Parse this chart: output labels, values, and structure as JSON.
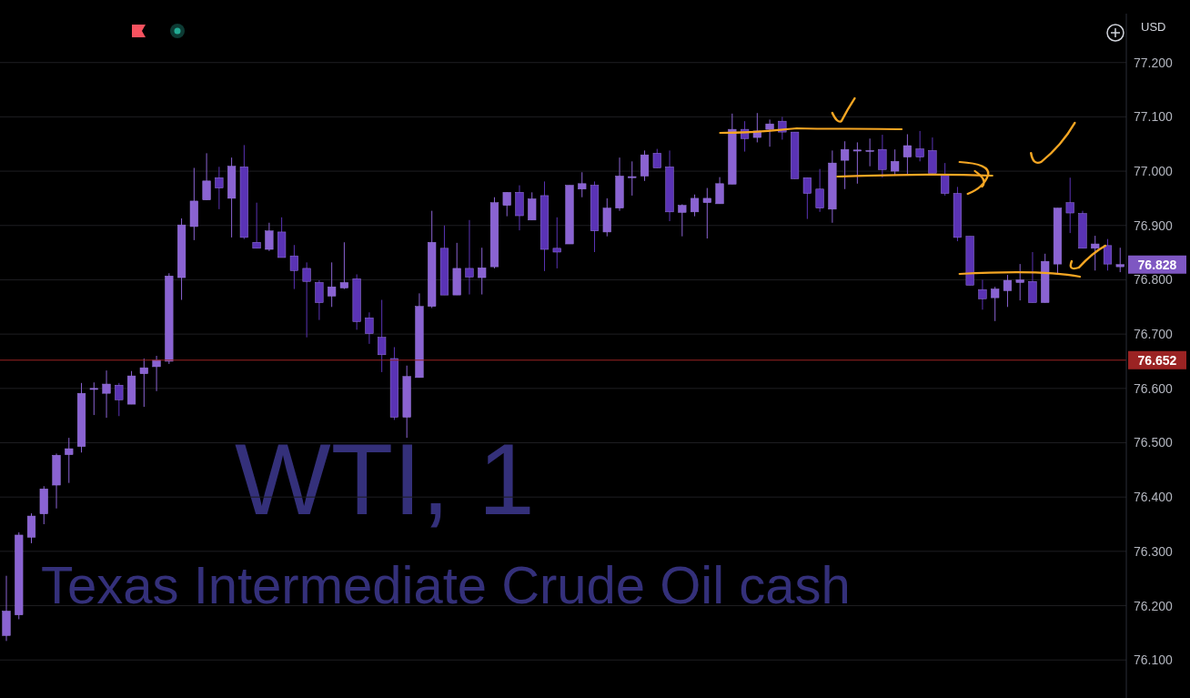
{
  "chart_data": {
    "type": "candlestick",
    "title": "WTI, 1",
    "subtitle": "Texas Intermediate Crude Oil cash",
    "annotations": [
      "USD",
      "76.828"
    ],
    "categories": [
      null,
      null,
      null,
      null,
      null,
      null,
      null,
      null,
      null,
      null,
      null,
      null,
      null,
      null,
      null,
      null,
      null,
      null,
      null,
      null,
      null,
      null,
      null,
      null,
      null,
      null,
      null,
      null,
      null,
      null,
      null,
      null,
      null,
      null,
      null,
      null,
      null,
      null,
      null,
      null,
      null,
      null,
      null,
      null,
      null,
      null,
      null,
      null,
      null,
      null,
      null,
      null,
      null,
      null,
      null,
      null,
      null,
      null,
      null,
      null,
      null,
      null,
      null,
      null,
      null,
      null,
      null,
      null,
      null,
      null,
      null,
      null,
      null,
      null,
      null,
      null,
      null,
      null,
      null,
      null,
      null,
      null,
      null,
      null,
      null,
      null,
      null,
      null,
      null,
      null
    ],
    "ohlc": [
      [
        76.145,
        76.255,
        76.135,
        76.19
      ],
      [
        76.183,
        76.335,
        76.175,
        76.33
      ],
      [
        76.326,
        76.37,
        76.315,
        76.365
      ],
      [
        76.369,
        76.42,
        76.35,
        76.415
      ],
      [
        76.422,
        76.48,
        76.379,
        76.477
      ],
      [
        76.478,
        76.509,
        76.426,
        76.489
      ],
      [
        76.493,
        76.61,
        76.482,
        76.591
      ],
      [
        76.598,
        76.611,
        76.551,
        76.6
      ],
      [
        76.591,
        76.633,
        76.546,
        76.608
      ],
      [
        76.606,
        76.61,
        76.549,
        76.579
      ],
      [
        76.571,
        76.632,
        76.571,
        76.623
      ],
      [
        76.627,
        76.655,
        76.566,
        76.638
      ],
      [
        76.64,
        76.66,
        76.595,
        76.652
      ],
      [
        76.65,
        76.812,
        76.645,
        76.807
      ],
      [
        76.804,
        76.913,
        76.763,
        76.901
      ],
      [
        76.898,
        77.006,
        76.873,
        76.945
      ],
      [
        76.947,
        77.033,
        76.947,
        76.982
      ],
      [
        76.988,
        77.008,
        76.93,
        76.969
      ],
      [
        76.95,
        77.025,
        76.878,
        77.009
      ],
      [
        77.008,
        77.048,
        76.875,
        76.878
      ],
      [
        76.869,
        76.942,
        76.858,
        76.858
      ],
      [
        76.856,
        76.905,
        76.853,
        76.89
      ],
      [
        76.888,
        76.915,
        76.841,
        76.841
      ],
      [
        76.844,
        76.864,
        76.783,
        76.817
      ],
      [
        76.821,
        76.832,
        76.694,
        76.797
      ],
      [
        76.795,
        76.799,
        76.726,
        76.758
      ],
      [
        76.77,
        76.832,
        76.75,
        76.787
      ],
      [
        76.785,
        76.869,
        76.783,
        76.795
      ],
      [
        76.802,
        76.81,
        76.708,
        76.723
      ],
      [
        76.73,
        76.74,
        76.682,
        76.701
      ],
      [
        76.694,
        76.763,
        76.63,
        76.662
      ],
      [
        76.655,
        76.676,
        76.542,
        76.547
      ],
      [
        76.547,
        76.642,
        76.509,
        76.622
      ],
      [
        76.62,
        76.775,
        76.62,
        76.751
      ],
      [
        76.751,
        76.927,
        76.748,
        76.869
      ],
      [
        76.858,
        76.9,
        76.772,
        76.772
      ],
      [
        76.772,
        76.868,
        76.772,
        76.821
      ],
      [
        76.821,
        76.91,
        76.773,
        76.805
      ],
      [
        76.804,
        76.859,
        76.773,
        76.822
      ],
      [
        76.824,
        76.952,
        76.821,
        76.942
      ],
      [
        76.937,
        76.961,
        76.917,
        76.961
      ],
      [
        76.961,
        76.974,
        76.891,
        76.918
      ],
      [
        76.91,
        76.961,
        76.91,
        76.949
      ],
      [
        76.955,
        76.981,
        76.816,
        76.856
      ],
      [
        76.858,
        76.915,
        76.821,
        76.851
      ],
      [
        76.866,
        76.974,
        76.866,
        76.974
      ],
      [
        76.967,
        76.998,
        76.952,
        76.977
      ],
      [
        76.974,
        76.981,
        76.851,
        76.89
      ],
      [
        76.888,
        76.95,
        76.88,
        76.932
      ],
      [
        76.932,
        77.025,
        76.927,
        76.991
      ],
      [
        76.988,
        77.018,
        76.955,
        76.99
      ],
      [
        76.991,
        77.038,
        76.982,
        77.03
      ],
      [
        77.033,
        77.041,
        77.006,
        77.006
      ],
      [
        77.008,
        77.038,
        76.908,
        76.925
      ],
      [
        76.924,
        76.939,
        76.88,
        76.937
      ],
      [
        76.925,
        76.957,
        76.917,
        76.95
      ],
      [
        76.942,
        76.969,
        76.876,
        76.95
      ],
      [
        76.94,
        76.989,
        76.94,
        76.977
      ],
      [
        76.976,
        77.106,
        76.976,
        77.077
      ],
      [
        77.077,
        77.092,
        77.036,
        77.06
      ],
      [
        77.062,
        77.107,
        77.053,
        77.074
      ],
      [
        77.077,
        77.095,
        77.045,
        77.087
      ],
      [
        77.092,
        77.1,
        77.058,
        77.072
      ],
      [
        77.072,
        77.072,
        76.986,
        76.986
      ],
      [
        76.988,
        76.988,
        76.912,
        76.959
      ],
      [
        76.967,
        77.004,
        76.925,
        76.932
      ],
      [
        76.93,
        77.038,
        76.905,
        77.015
      ],
      [
        77.02,
        77.055,
        76.967,
        77.04
      ],
      [
        77.037,
        77.053,
        76.977,
        77.039
      ],
      [
        77.037,
        77.06,
        77.009,
        77.038
      ],
      [
        77.04,
        77.067,
        76.988,
        77.003
      ],
      [
        77.0,
        77.04,
        76.993,
        77.018
      ],
      [
        77.026,
        77.068,
        76.993,
        77.047
      ],
      [
        77.041,
        77.074,
        77.018,
        77.026
      ],
      [
        77.038,
        77.062,
        76.996,
        76.996
      ],
      [
        76.994,
        77.015,
        76.955,
        76.959
      ],
      [
        76.959,
        76.971,
        76.871,
        76.878
      ],
      [
        76.88,
        76.88,
        76.79,
        76.79
      ],
      [
        76.782,
        76.8,
        76.745,
        76.765
      ],
      [
        76.767,
        76.787,
        76.724,
        76.783
      ],
      [
        76.78,
        76.809,
        76.75,
        76.799
      ],
      [
        76.795,
        76.829,
        76.762,
        76.8
      ],
      [
        76.797,
        76.851,
        76.758,
        76.758
      ],
      [
        76.758,
        76.848,
        76.758,
        76.834
      ],
      [
        76.829,
        76.932,
        76.812,
        76.932
      ],
      [
        76.942,
        76.988,
        76.886,
        76.923
      ],
      [
        76.922,
        76.927,
        76.858,
        76.858
      ],
      [
        76.858,
        76.881,
        76.817,
        76.866
      ],
      [
        76.863,
        76.875,
        76.817,
        76.829
      ],
      [
        76.824,
        76.859,
        76.814,
        76.828
      ]
    ],
    "colors": [
      "#8a63d2",
      "#8a63d2",
      "#8a63d2",
      "#8a63d2",
      "#8a63d2",
      "#8a63d2",
      "#8a63d2",
      "#8a63d2",
      "#8a63d2",
      "#5a33b5",
      "#8a63d2",
      "#8a63d2",
      "#8a63d2",
      "#8a63d2",
      "#8a63d2",
      "#8a63d2",
      "#8a63d2",
      "#5a33b5",
      "#8a63d2",
      "#5a33b5",
      "#5a33b5",
      "#8a63d2",
      "#5a33b5",
      "#5a33b5",
      "#5a33b5",
      "#5a33b5",
      "#8a63d2",
      "#8a63d2",
      "#5a33b5",
      "#5a33b5",
      "#5a33b5",
      "#5a33b5",
      "#8a63d2",
      "#8a63d2",
      "#8a63d2",
      "#5a33b5",
      "#8a63d2",
      "#5a33b5",
      "#8a63d2",
      "#8a63d2",
      "#8a63d2",
      "#5a33b5",
      "#8a63d2",
      "#5a33b5",
      "#5a33b5",
      "#8a63d2",
      "#8a63d2",
      "#5a33b5",
      "#8a63d2",
      "#8a63d2",
      "#8a63d2",
      "#8a63d2",
      "#5a33b5",
      "#5a33b5",
      "#8a63d2",
      "#8a63d2",
      "#8a63d2",
      "#8a63d2",
      "#8a63d2",
      "#5a33b5",
      "#8a63d2",
      "#8a63d2",
      "#5a33b5",
      "#5a33b5",
      "#5a33b5",
      "#5a33b5",
      "#8a63d2",
      "#8a63d2",
      "#8a63d2",
      "#8a63d2",
      "#5a33b5",
      "#8a63d2",
      "#8a63d2",
      "#5a33b5",
      "#5a33b5",
      "#5a33b5",
      "#5a33b5",
      "#5a33b5",
      "#5a33b5",
      "#8a63d2",
      "#8a63d2",
      "#8a63d2",
      "#5a33b5",
      "#8a63d2",
      "#8a63d2",
      "#5a33b5",
      "#5a33b5",
      "#8a63d2",
      "#5a33b5",
      "#8a63d2"
    ],
    "ylim": [
      76.03,
      77.29
    ],
    "yticks": [
      {
        "value": 76.1,
        "label": "76.100"
      },
      {
        "value": 76.2,
        "label": "76.200"
      },
      {
        "value": 76.3,
        "label": "76.300"
      },
      {
        "value": 76.4,
        "label": "76.400"
      },
      {
        "value": 76.5,
        "label": "76.500"
      },
      {
        "value": 76.6,
        "label": "76.600"
      },
      {
        "value": 76.7,
        "label": "76.700"
      },
      {
        "value": 76.8,
        "label": "76.800"
      },
      {
        "value": 76.9,
        "label": "76.900"
      },
      {
        "value": 77.0,
        "label": "77.000"
      },
      {
        "value": 77.1,
        "label": "77.100"
      },
      {
        "value": 77.2,
        "label": "77.200"
      }
    ],
    "ref_lines": [
      {
        "axis": "y",
        "value": 76.652,
        "label": "76.652",
        "color": "#9b2323"
      }
    ],
    "grid": "y",
    "tick_labels": "y"
  }
}
